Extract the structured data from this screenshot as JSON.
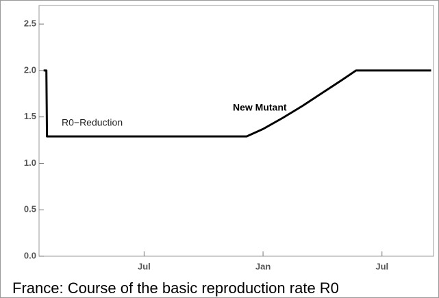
{
  "chart_data": {
    "type": "line",
    "caption": "France: Course of the basic reproduction rate R0",
    "annotations": [
      "R0−Reduction",
      "New Mutant"
    ],
    "x": [
      1.93,
      2.07,
      2.1,
      12.17,
      13.0,
      14.0,
      15.0,
      16.0,
      17.0,
      17.69,
      21.48
    ],
    "values": [
      2.0,
      2.0,
      1.29,
      1.29,
      1.37,
      1.49,
      1.62,
      1.76,
      1.9,
      2.0,
      2.0
    ],
    "color": "#000000",
    "xlim": [
      1.7,
      21.6
    ],
    "xticks": [
      {
        "value": 7,
        "label": "Jul"
      },
      {
        "value": 13,
        "label": "Jan"
      },
      {
        "value": 19,
        "label": "Jul"
      }
    ],
    "ylim": [
      0,
      2.7
    ],
    "yticks": [
      {
        "value": 0,
        "label": "0.0"
      },
      0.5,
      {
        "value": 1,
        "label": "1.0"
      },
      1.5,
      {
        "value": 2,
        "label": "2.0"
      },
      2.5
    ],
    "grid": false
  }
}
